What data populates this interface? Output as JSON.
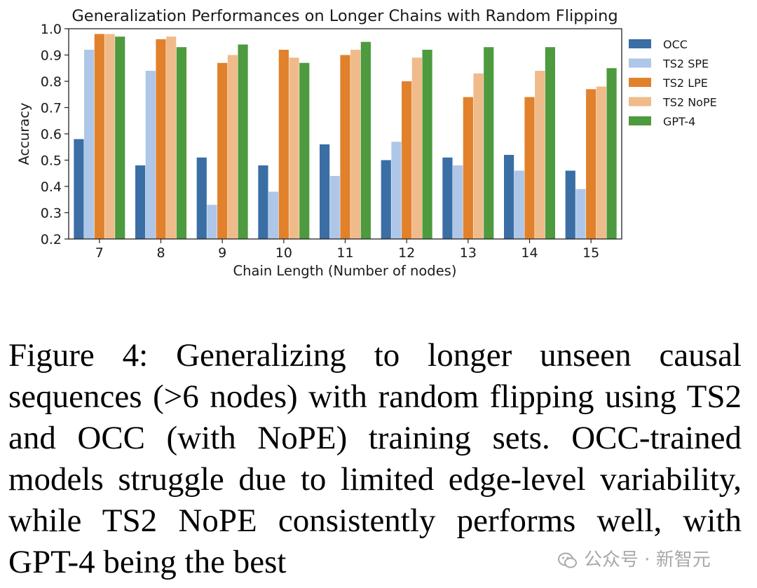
{
  "chart_data": {
    "type": "bar",
    "title": "Generalization Performances on Longer Chains with Random Flipping",
    "xlabel": "Chain Length (Number of nodes)",
    "ylabel": "Accuracy",
    "ylim": [
      0.2,
      1.0
    ],
    "yticks": [
      "0.2",
      "0.3",
      "0.4",
      "0.5",
      "0.6",
      "0.7",
      "0.8",
      "0.9",
      "1.0"
    ],
    "categories": [
      "7",
      "8",
      "9",
      "10",
      "11",
      "12",
      "13",
      "14",
      "15"
    ],
    "legend_position": "right",
    "series": [
      {
        "name": "OCC",
        "color": "#3a6ea5",
        "values": [
          0.58,
          0.48,
          0.51,
          0.48,
          0.56,
          0.5,
          0.51,
          0.52,
          0.46
        ]
      },
      {
        "name": "TS2 SPE",
        "color": "#aec7e8",
        "values": [
          0.92,
          0.84,
          0.33,
          0.38,
          0.44,
          0.57,
          0.48,
          0.46,
          0.39
        ]
      },
      {
        "name": "TS2 LPE",
        "color": "#e1812c",
        "values": [
          0.98,
          0.96,
          0.87,
          0.92,
          0.9,
          0.8,
          0.74,
          0.74,
          0.77
        ]
      },
      {
        "name": "TS2 NoPE",
        "color": "#f0bb8a",
        "values": [
          0.98,
          0.97,
          0.9,
          0.89,
          0.92,
          0.89,
          0.83,
          0.84,
          0.78
        ]
      },
      {
        "name": "GPT-4",
        "color": "#4d9a3f",
        "values": [
          0.97,
          0.93,
          0.94,
          0.87,
          0.95,
          0.92,
          0.93,
          0.93,
          0.85
        ]
      }
    ]
  },
  "caption": "Figure 4: Generalizing to longer unseen causal sequences (>6 nodes) with random flipping using TS2 and OCC (with NoPE) training sets. OCC-trained models struggle due to limited edge-level variability, while TS2 NoPE consistently performs well, with GPT-4 being the best",
  "watermark": {
    "text": "公众号 · 新智元",
    "icon": "wechat-icon"
  }
}
